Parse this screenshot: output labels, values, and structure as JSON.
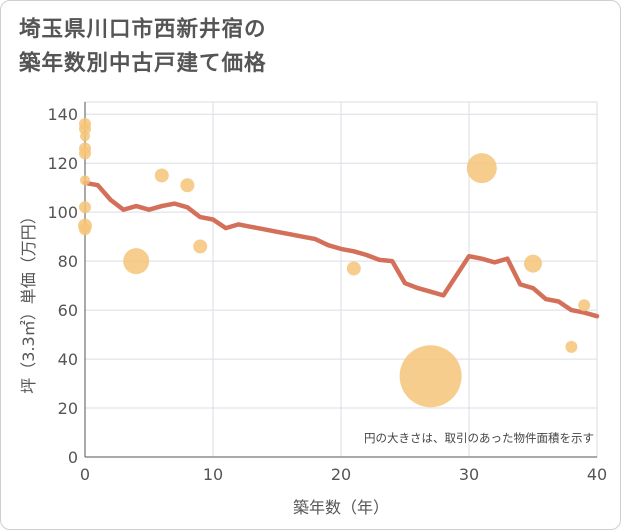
{
  "title_lines": [
    "埼玉県川口市西新井宿の",
    "築年数別中古戸建て価格"
  ],
  "chart_data": {
    "type": "line+scatter",
    "title": "埼玉県川口市西新井宿の築年数別中古戸建て価格",
    "xlabel": "築年数（年）",
    "ylabel": "坪（3.3㎡）単価（万円）",
    "xlim": [
      0,
      40
    ],
    "ylim": [
      0,
      145
    ],
    "xticks": [
      0,
      10,
      20,
      30,
      40
    ],
    "yticks": [
      0,
      20,
      40,
      60,
      80,
      100,
      120,
      140
    ],
    "grid": true,
    "note": "円の大きさは、取引のあった物件面積を示す",
    "colors": {
      "line": "#d4705a",
      "bubble": "#f5c478"
    },
    "line": {
      "x": [
        0,
        1,
        2,
        3,
        4,
        5,
        6,
        7,
        8,
        9,
        10,
        11,
        12,
        13,
        14,
        15,
        16,
        17,
        18,
        19,
        20,
        21,
        22,
        23,
        24,
        25,
        26,
        27,
        28,
        29,
        30,
        31,
        32,
        33,
        34,
        35,
        36,
        37,
        38,
        39,
        40
      ],
      "y": [
        112,
        111,
        105,
        101,
        102.5,
        101,
        102.5,
        103.5,
        102,
        98,
        97,
        93.5,
        95,
        94,
        93,
        92,
        91,
        90,
        89,
        86.5,
        85,
        84,
        82.5,
        80.5,
        80,
        71,
        69,
        67.5,
        66,
        74,
        82,
        81,
        79.5,
        81,
        70.5,
        69,
        64.5,
        63.5,
        60,
        59,
        57.5
      ]
    },
    "bubbles": [
      {
        "x": 0,
        "y": 136,
        "size": 6
      },
      {
        "x": 0,
        "y": 134,
        "size": 6
      },
      {
        "x": 0,
        "y": 131,
        "size": 5
      },
      {
        "x": 0,
        "y": 126,
        "size": 6
      },
      {
        "x": 0,
        "y": 124,
        "size": 6
      },
      {
        "x": 0,
        "y": 113,
        "size": 5
      },
      {
        "x": 0,
        "y": 102,
        "size": 6
      },
      {
        "x": 0,
        "y": 94.5,
        "size": 7
      },
      {
        "x": 0,
        "y": 93,
        "size": 6
      },
      {
        "x": 4,
        "y": 80,
        "size": 13
      },
      {
        "x": 6,
        "y": 115,
        "size": 7
      },
      {
        "x": 8,
        "y": 111,
        "size": 7
      },
      {
        "x": 9,
        "y": 86,
        "size": 7
      },
      {
        "x": 21,
        "y": 77,
        "size": 7
      },
      {
        "x": 27,
        "y": 33,
        "size": 31
      },
      {
        "x": 31,
        "y": 118,
        "size": 15
      },
      {
        "x": 35,
        "y": 79,
        "size": 9
      },
      {
        "x": 38,
        "y": 45,
        "size": 6
      },
      {
        "x": 39,
        "y": 62,
        "size": 6
      }
    ]
  }
}
